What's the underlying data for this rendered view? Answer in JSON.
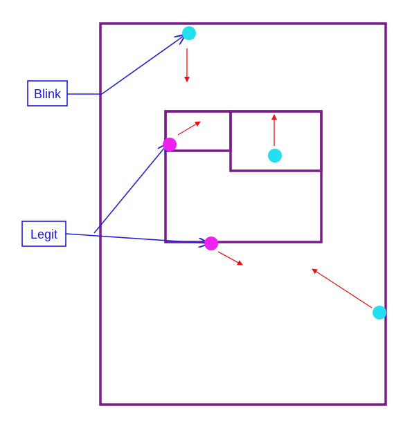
{
  "labels": {
    "blink": "Blink",
    "legit": "Legit"
  },
  "colors": {
    "region_border": "#7a1a8c",
    "label_border": "#1a1adf",
    "pointer_arrow": "#2222dd",
    "motion_arrow": "#ee1111",
    "blink_dot": "#22e0f0",
    "legit_dot": "#ee22ee"
  }
}
